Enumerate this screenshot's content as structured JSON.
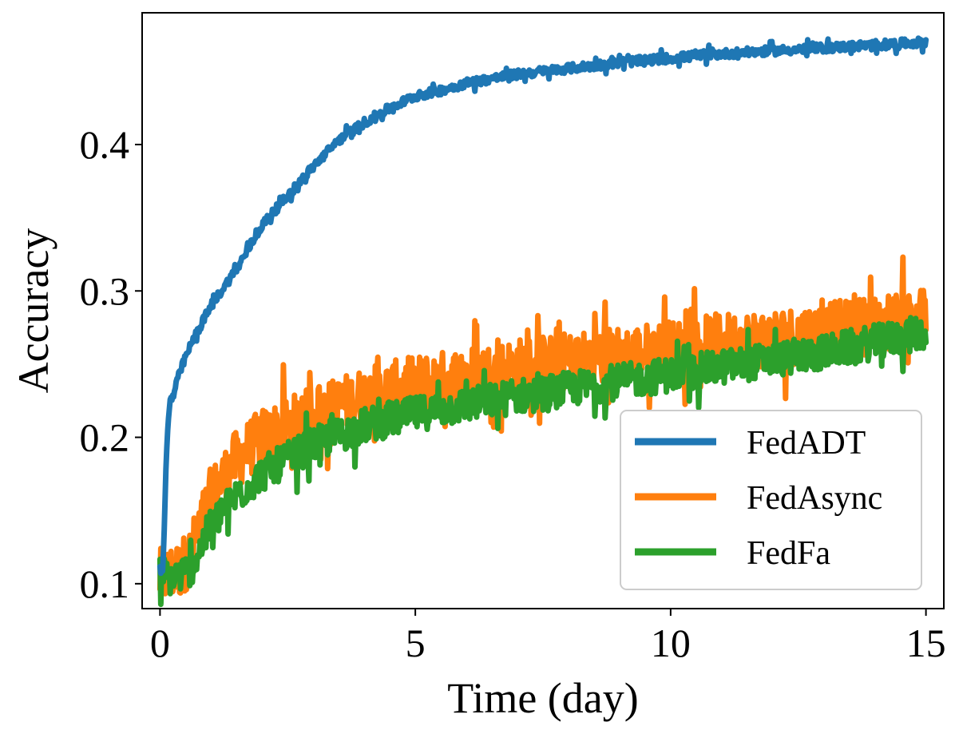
{
  "chart_data": {
    "type": "line",
    "title": "",
    "xlabel": "Time (day)",
    "ylabel": "Accuracy",
    "xlim": [
      -0.35,
      15.35
    ],
    "ylim": [
      0.083,
      0.49
    ],
    "xticks": [
      0,
      5,
      10,
      15
    ],
    "xtick_labels": [
      "0",
      "5",
      "10",
      "15"
    ],
    "yticks": [
      0.1,
      0.2,
      0.3,
      0.4
    ],
    "ytick_labels": [
      "0.1",
      "0.2",
      "0.3",
      "0.4"
    ],
    "grid": false,
    "legend_position": "lower-right",
    "series": [
      {
        "name": "FedADT",
        "color": "#1f77b4",
        "noise": 0.003,
        "x": [
          0,
          0.05,
          0.08,
          0.1,
          0.13,
          0.16,
          0.2,
          0.25,
          0.35,
          0.5,
          0.7,
          1.0,
          1.5,
          2.0,
          2.5,
          3.0,
          3.5,
          4.0,
          4.5,
          5.0,
          5.5,
          6.0,
          7.0,
          8.0,
          9.0,
          10.0,
          11.0,
          12.0,
          13.0,
          14.0,
          15.0
        ],
        "y": [
          0.11,
          0.11,
          0.13,
          0.16,
          0.19,
          0.21,
          0.225,
          0.228,
          0.24,
          0.255,
          0.27,
          0.29,
          0.315,
          0.345,
          0.365,
          0.385,
          0.403,
          0.415,
          0.425,
          0.433,
          0.437,
          0.442,
          0.448,
          0.452,
          0.456,
          0.459,
          0.462,
          0.464,
          0.466,
          0.468,
          0.47
        ]
      },
      {
        "name": "FedAsync",
        "color": "#ff7f0e",
        "noise": 0.02,
        "x": [
          0,
          0.2,
          0.4,
          0.6,
          0.8,
          1.0,
          1.5,
          2.0,
          3.0,
          4.0,
          5.0,
          6.0,
          7.0,
          8.0,
          9.0,
          10.0,
          11.0,
          12.0,
          13.0,
          14.0,
          15.0
        ],
        "y": [
          0.104,
          0.107,
          0.11,
          0.12,
          0.14,
          0.16,
          0.185,
          0.2,
          0.215,
          0.228,
          0.236,
          0.242,
          0.248,
          0.252,
          0.256,
          0.26,
          0.265,
          0.268,
          0.272,
          0.277,
          0.283
        ]
      },
      {
        "name": "FedFa",
        "color": "#2ca02c",
        "noise": 0.012,
        "x": [
          0,
          0.2,
          0.4,
          0.6,
          0.8,
          1.0,
          1.5,
          2.0,
          3.0,
          4.0,
          5.0,
          6.0,
          7.0,
          8.0,
          9.0,
          10.0,
          11.0,
          12.0,
          13.0,
          14.0,
          15.0
        ],
        "y": [
          0.108,
          0.104,
          0.106,
          0.11,
          0.125,
          0.14,
          0.16,
          0.175,
          0.195,
          0.208,
          0.216,
          0.222,
          0.228,
          0.233,
          0.238,
          0.243,
          0.248,
          0.253,
          0.258,
          0.265,
          0.272
        ]
      }
    ]
  }
}
